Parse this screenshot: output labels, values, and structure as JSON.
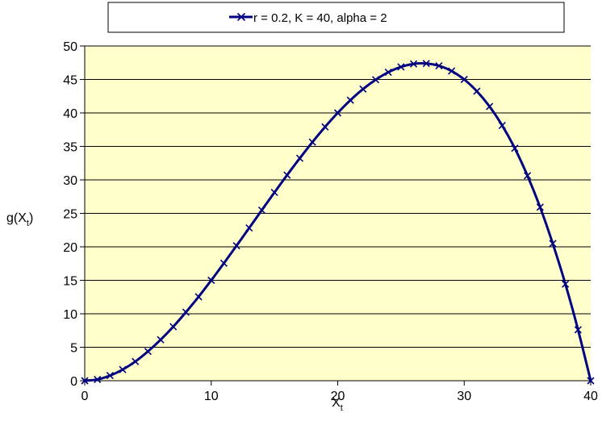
{
  "chart_data": {
    "type": "line",
    "xlabel": {
      "base": "X",
      "sub": "t"
    },
    "ylabel": {
      "base": "g(X",
      "sub": "t",
      "tail": ")"
    },
    "xlim": [
      0,
      40
    ],
    "ylim": [
      0,
      50
    ],
    "xticks": [
      "0",
      "10",
      "20",
      "30",
      "40"
    ],
    "yticks": [
      "0",
      "5",
      "10",
      "15",
      "20",
      "25",
      "30",
      "35",
      "40",
      "45",
      "50"
    ],
    "grid": "horizontal",
    "legend_position": "top",
    "plot_background": "#ffffcc",
    "series": [
      {
        "name": "r = 0.2, K = 40, alpha = 2",
        "color": "#000080",
        "marker": "x",
        "x": [
          0,
          1,
          2,
          3,
          4,
          5,
          6,
          7,
          8,
          9,
          10,
          11,
          12,
          13,
          14,
          15,
          16,
          17,
          18,
          19,
          20,
          21,
          22,
          23,
          24,
          25,
          26,
          27,
          28,
          29,
          30,
          31,
          32,
          33,
          34,
          35,
          36,
          37,
          38,
          39,
          40
        ],
        "y": [
          0,
          0.19,
          0.77,
          1.67,
          2.87,
          4.38,
          6.12,
          8.07,
          10.24,
          12.54,
          15,
          17.55,
          20.16,
          22.82,
          25.48,
          28.13,
          30.72,
          33.23,
          35.64,
          37.91,
          40,
          41.9,
          43.56,
          44.96,
          46.08,
          46.88,
          47.32,
          47.38,
          47.04,
          46.26,
          45,
          43.24,
          40.96,
          38.13,
          34.72,
          30.63,
          25.92,
          20.49,
          14.44,
          7.61,
          0
        ]
      }
    ]
  }
}
